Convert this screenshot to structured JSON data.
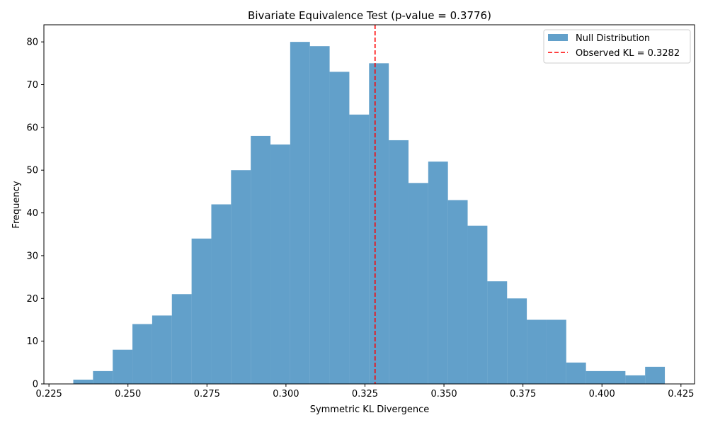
{
  "chart_data": {
    "type": "bar",
    "title": "Bivariate Equivalence Test (p-value = 0.3776)",
    "xlabel": "Symmetric KL Divergence",
    "ylabel": "Frequency",
    "xlim": [
      0.2234,
      0.4293
    ],
    "ylim": [
      0,
      84
    ],
    "x_ticks": [
      0.225,
      0.25,
      0.275,
      0.3,
      0.325,
      0.35,
      0.375,
      0.4,
      0.425
    ],
    "x_tick_labels": [
      "0.225",
      "0.250",
      "0.275",
      "0.300",
      "0.325",
      "0.350",
      "0.375",
      "0.400",
      "0.425"
    ],
    "y_ticks": [
      0,
      10,
      20,
      30,
      40,
      50,
      60,
      70,
      80
    ],
    "y_tick_labels": [
      "0",
      "10",
      "20",
      "30",
      "40",
      "50",
      "60",
      "70",
      "80"
    ],
    "bin_start": 0.2327,
    "bin_width": 0.00624,
    "counts": [
      1,
      3,
      8,
      14,
      16,
      21,
      34,
      42,
      50,
      58,
      56,
      80,
      79,
      73,
      63,
      75,
      57,
      47,
      52,
      43,
      37,
      24,
      20,
      15,
      15,
      5,
      3,
      3,
      2,
      4
    ],
    "bar_color": "#1f77b4",
    "bar_alpha": 0.7,
    "observed_kl": 0.3282,
    "observed_line_color": "#ff0000",
    "grid": false,
    "legend_position": "top-right",
    "legend": {
      "entries": [
        {
          "label": "Null Distribution",
          "kind": "patch"
        },
        {
          "label": "Observed KL = 0.3282",
          "kind": "dashed-line"
        }
      ]
    }
  }
}
